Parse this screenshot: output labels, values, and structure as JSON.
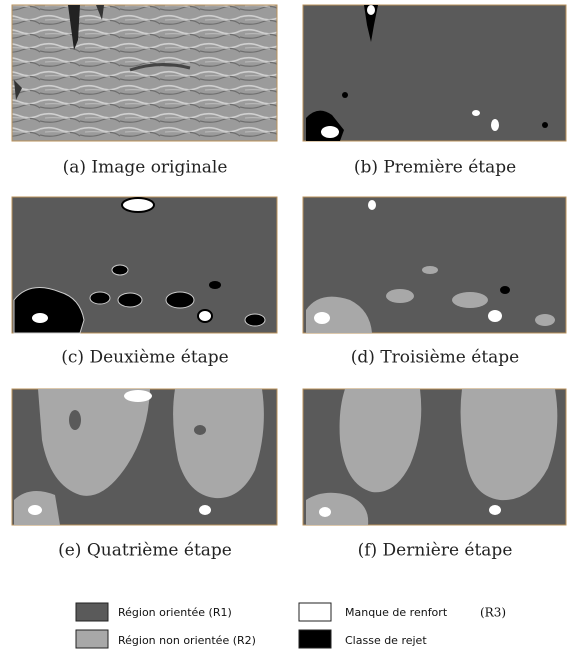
{
  "panels": [
    {
      "caption": "(a) Image originale"
    },
    {
      "caption": "(b) Première étape"
    },
    {
      "caption": "(c) Deuxième étape"
    },
    {
      "caption": "(d) Troisième étape"
    },
    {
      "caption": "(e) Quatrième étape"
    },
    {
      "caption": "(f) Dernière étape"
    }
  ],
  "legend": [
    {
      "label": "Région orientée (R1)"
    },
    {
      "label": "Région non orientée (R2)"
    },
    {
      "label": "Manque de renfort",
      "code": "(R3)"
    },
    {
      "label": "Classe de rejet"
    }
  ]
}
